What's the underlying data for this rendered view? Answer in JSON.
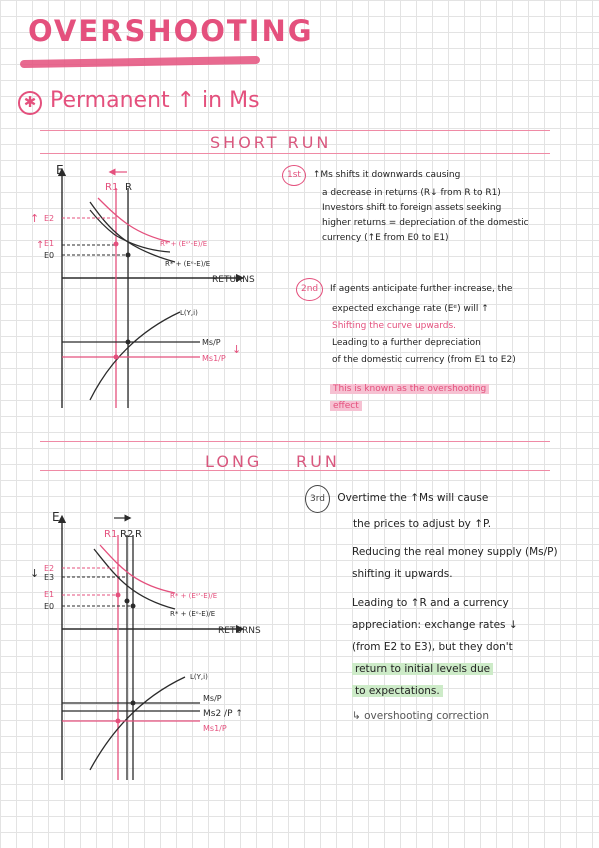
{
  "title": "OVERSHOOTING",
  "subtitle": "Permanent ↑ in Ms",
  "short_run": {
    "heading": "SHORT RUN",
    "graph": {
      "e_axis": "E",
      "returns_axis": "RETURNS",
      "r1": "R1",
      "r": "R",
      "e2": "E2",
      "e1": "E1",
      "e0": "E0",
      "curve_new": "R* + (Eᵉ'-E)/E",
      "curve_old": "R* + (Eᵉ-E)/E",
      "l_curve": "L(Y,i)",
      "ms_p": "Ms/P",
      "ms1_p": "Ms1/P"
    },
    "step1": {
      "badge": "1st",
      "lines": [
        "↑Ms shifts it downwards causing",
        "a decrease in returns (R↓ from R to R1)",
        "Investors shift to foreign assets seeking",
        "higher returns = depreciation of the domestic",
        "currency (↑E from E0 to E1)"
      ]
    },
    "step2": {
      "badge": "2nd",
      "lines": [
        "If agents anticipate further increase, the",
        "expected exchange rate (Eᵉ) will ↑",
        "Shifting the curve upwards.",
        "Leading to a further depreciation",
        "of the domestic currency (from E1 to E2)"
      ],
      "highlight_lines": [
        "This is known as the overshooting",
        "effect"
      ]
    }
  },
  "long_run": {
    "heading_left": "LONG",
    "heading_right": "RUN",
    "graph": {
      "e_axis": "E",
      "returns_axis": "RETURNS",
      "r1": "R1",
      "r2": "R2",
      "r": "R",
      "e2": "E2",
      "e3": "E3",
      "e1": "E1",
      "e0": "E0",
      "curve_new": "R* + (Eᵉ'-E)/E",
      "curve_old": "R* + (Eᵉ-E)/E",
      "l_curve": "L(Y,i)",
      "ms_p": "Ms/P",
      "ms2_p": "Ms2 /P ↑",
      "ms1_p": "Ms1/P"
    },
    "step3": {
      "badge": "3rd",
      "lines": [
        "Overtime the ↑Ms will cause",
        "the prices to adjust by ↑P.",
        "Reducing the real money supply (Ms/P)",
        "shifting it upwards.",
        "Leading to ↑R and a currency",
        "appreciation: exchange rates ↓",
        "(from E2 to E3), but they don't",
        "return to initial levels due",
        "to expectations."
      ],
      "correction": "↳ overshooting correction"
    }
  },
  "colors": {
    "pink": "#e4507d",
    "light_pink": "#f6c1d2",
    "green": "#cdebc8",
    "grid": "#e3e3e3",
    "ink": "#2b2b2b"
  }
}
